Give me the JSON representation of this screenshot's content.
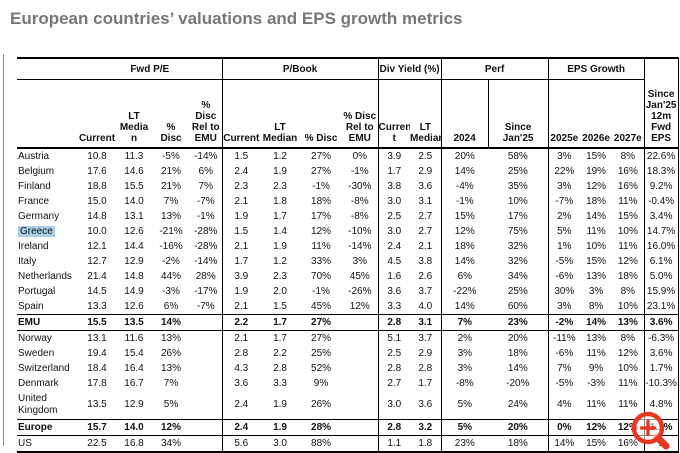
{
  "title": "European countries’ valuations and EPS growth metrics",
  "colors": {
    "title_gray": "#76777a",
    "highlight_blue": "#a9d0e8",
    "line_black": "#000000",
    "magnifier_red": "#e6381e"
  },
  "icons": {
    "magnifier": "zoom-in-magnifier-icon"
  },
  "chart_data": {
    "type": "table",
    "title": "European countries’ valuations and EPS growth metrics",
    "column_groups": [
      {
        "label": "",
        "span": 1
      },
      {
        "label": "Fwd P/E",
        "span": 4
      },
      {
        "label": "P/Book",
        "span": 4
      },
      {
        "label": "Div Yield (%)",
        "span": 2
      },
      {
        "label": "Perf",
        "span": 2
      },
      {
        "label": "EPS Growth",
        "span": 3
      },
      {
        "label": "",
        "span": 1
      }
    ],
    "subheaders": [
      "",
      "Current",
      "LT\nMedia\nn",
      "%\nDisc",
      "% Disc\nRel to\nEMU",
      "Current",
      "LT\nMedian",
      "% Disc",
      "% Disc\nRel to\nEMU",
      "Curren\nt",
      "LT\nMedian",
      "2024",
      "Since Jan'25",
      "2025e",
      "2026e",
      "2027e",
      "Since\nJan'25\n12m\nFwd\nEPS"
    ],
    "rows": [
      {
        "name": "Austria",
        "cells": [
          "10.8",
          "11.3",
          "-5%",
          "-14%",
          "1.5",
          "1.2",
          "27%",
          "0%",
          "3.9",
          "2.5",
          "20%",
          "58%",
          "3%",
          "15%",
          "8%",
          "22.6%"
        ]
      },
      {
        "name": "Belgium",
        "cells": [
          "17.6",
          "14.6",
          "21%",
          "6%",
          "2.4",
          "1.9",
          "27%",
          "-1%",
          "1.7",
          "2.9",
          "14%",
          "25%",
          "22%",
          "19%",
          "16%",
          "18.3%"
        ]
      },
      {
        "name": "Finland",
        "cells": [
          "18.8",
          "15.5",
          "21%",
          "7%",
          "2.3",
          "2.3",
          "-1%",
          "-30%",
          "3.8",
          "3.6",
          "-4%",
          "35%",
          "3%",
          "12%",
          "16%",
          "9.2%"
        ]
      },
      {
        "name": "France",
        "cells": [
          "15.0",
          "14.0",
          "7%",
          "-7%",
          "2.1",
          "1.8",
          "18%",
          "-8%",
          "3.0",
          "3.1",
          "-1%",
          "10%",
          "-7%",
          "18%",
          "11%",
          "-0.4%"
        ]
      },
      {
        "name": "Germany",
        "cells": [
          "14.8",
          "13.1",
          "13%",
          "-1%",
          "1.9",
          "1.7",
          "17%",
          "-8%",
          "2.5",
          "2.7",
          "15%",
          "17%",
          "2%",
          "14%",
          "15%",
          "3.4%"
        ]
      },
      {
        "name": "Greece",
        "highlight": true,
        "cells": [
          "10.0",
          "12.6",
          "-21%",
          "-28%",
          "1.5",
          "1.4",
          "12%",
          "-10%",
          "3.0",
          "2.7",
          "12%",
          "75%",
          "5%",
          "11%",
          "10%",
          "14.7%"
        ]
      },
      {
        "name": "Ireland",
        "cells": [
          "12.1",
          "14.4",
          "-16%",
          "-28%",
          "2.1",
          "1.9",
          "11%",
          "-14%",
          "2.4",
          "2.1",
          "18%",
          "32%",
          "1%",
          "10%",
          "11%",
          "16.0%"
        ]
      },
      {
        "name": "Italy",
        "cells": [
          "12.7",
          "12.9",
          "-2%",
          "-14%",
          "1.7",
          "1.2",
          "33%",
          "3%",
          "4.5",
          "3.8",
          "14%",
          "32%",
          "-5%",
          "15%",
          "12%",
          "6.1%"
        ]
      },
      {
        "name": "Netherlands",
        "cells": [
          "21.4",
          "14.8",
          "44%",
          "28%",
          "3.9",
          "2.3",
          "70%",
          "45%",
          "1.6",
          "2.6",
          "6%",
          "34%",
          "-6%",
          "13%",
          "18%",
          "5.0%"
        ]
      },
      {
        "name": "Portugal",
        "cells": [
          "14.5",
          "14.9",
          "-3%",
          "-17%",
          "1.9",
          "2.0",
          "-1%",
          "-26%",
          "3.6",
          "3.7",
          "-22%",
          "25%",
          "30%",
          "3%",
          "8%",
          "15.9%"
        ]
      },
      {
        "name": "Spain",
        "cells": [
          "13.3",
          "12.6",
          "6%",
          "-7%",
          "2.1",
          "1.5",
          "45%",
          "12%",
          "3.3",
          "4.0",
          "14%",
          "60%",
          "3%",
          "8%",
          "10%",
          "23.1%"
        ]
      },
      {
        "name": "EMU",
        "bold": true,
        "sep_top": true,
        "sep_bot": true,
        "cells": [
          "15.5",
          "13.5",
          "14%",
          "",
          "2.2",
          "1.7",
          "27%",
          "",
          "2.8",
          "3.1",
          "7%",
          "23%",
          "-2%",
          "14%",
          "13%",
          "3.6%"
        ]
      },
      {
        "name": "Norway",
        "cells": [
          "13.1",
          "11.6",
          "13%",
          "",
          "2.1",
          "1.7",
          "27%",
          "",
          "5.1",
          "3.7",
          "2%",
          "20%",
          "-11%",
          "13%",
          "8%",
          "-6.3%"
        ]
      },
      {
        "name": "Sweden",
        "cells": [
          "19.4",
          "15.4",
          "26%",
          "",
          "2.8",
          "2.2",
          "25%",
          "",
          "2.5",
          "2.9",
          "3%",
          "18%",
          "-6%",
          "11%",
          "12%",
          "3.6%"
        ]
      },
      {
        "name": "Switzerland",
        "cells": [
          "18.4",
          "16.4",
          "13%",
          "",
          "4.3",
          "2.8",
          "52%",
          "",
          "2.8",
          "2.8",
          "3%",
          "14%",
          "7%",
          "9%",
          "10%",
          "1.7%"
        ]
      },
      {
        "name": "Denmark",
        "cells": [
          "17.8",
          "16.7",
          "7%",
          "",
          "3.6",
          "3.3",
          "9%",
          "",
          "2.7",
          "1.7",
          "-8%",
          "-20%",
          "-5%",
          "-3%",
          "11%",
          "-10.3%"
        ]
      },
      {
        "name": "United\nKingdom",
        "cells": [
          "13.5",
          "12.9",
          "5%",
          "",
          "2.4",
          "1.9",
          "26%",
          "",
          "3.0",
          "3.6",
          "5%",
          "24%",
          "4%",
          "11%",
          "11%",
          "4.8%"
        ]
      },
      {
        "name": "Europe",
        "bold": true,
        "sep_top": true,
        "sep_bot": true,
        "cells": [
          "15.7",
          "14.0",
          "12%",
          "",
          "2.4",
          "1.9",
          "28%",
          "",
          "2.8",
          "3.2",
          "5%",
          "20%",
          "0%",
          "12%",
          "12%",
          "1.1%"
        ]
      },
      {
        "name": "US",
        "last": true,
        "cells": [
          "22.5",
          "16.8",
          "34%",
          "",
          "5.6",
          "3.0",
          "88%",
          "",
          "1.1",
          "1.8",
          "23%",
          "18%",
          "14%",
          "15%",
          "16%",
          "1"
        ]
      }
    ]
  }
}
